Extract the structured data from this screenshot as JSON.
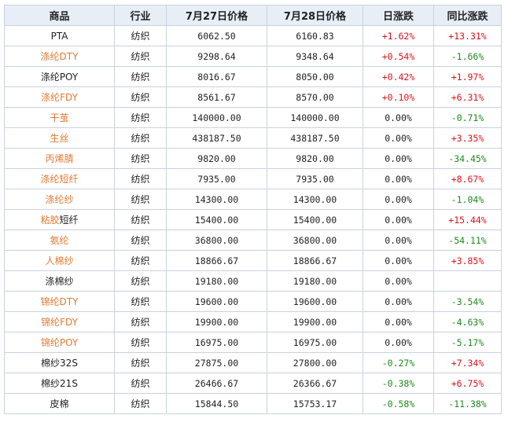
{
  "columns": [
    "商品",
    "行业",
    "7月27日价格",
    "7月28日价格",
    "日涨跌",
    "同比涨跌"
  ],
  "colors": {
    "link": "#e07a32",
    "up": "#d8141c",
    "down": "#1e8a1e",
    "header_bg": "#e8eef6"
  },
  "rows": [
    {
      "name_a": "PTA",
      "name_b": "",
      "name_style": "plain",
      "industry": "纺织",
      "p27": "6062.50",
      "p28": "6160.83",
      "daily": "+1.62%",
      "daily_dir": "up",
      "yoy": "+13.31%",
      "yoy_dir": "up"
    },
    {
      "name_a": "涤纶DTY",
      "name_b": "",
      "name_style": "link",
      "industry": "纺织",
      "p27": "9298.64",
      "p28": "9348.64",
      "daily": "+0.54%",
      "daily_dir": "up",
      "yoy": "-1.66%",
      "yoy_dir": "down"
    },
    {
      "name_a": "涤纶POY",
      "name_b": "",
      "name_style": "plain",
      "industry": "纺织",
      "p27": "8016.67",
      "p28": "8050.00",
      "daily": "+0.42%",
      "daily_dir": "up",
      "yoy": "+1.97%",
      "yoy_dir": "up"
    },
    {
      "name_a": "涤纶FDY",
      "name_b": "",
      "name_style": "link",
      "industry": "纺织",
      "p27": "8561.67",
      "p28": "8570.00",
      "daily": "+0.10%",
      "daily_dir": "up",
      "yoy": "+6.31%",
      "yoy_dir": "up"
    },
    {
      "name_a": "干茧",
      "name_b": "",
      "name_style": "link",
      "industry": "纺织",
      "p27": "140000.00",
      "p28": "140000.00",
      "daily": "0.00%",
      "daily_dir": "flat",
      "yoy": "-0.71%",
      "yoy_dir": "down"
    },
    {
      "name_a": "生丝",
      "name_b": "",
      "name_style": "link",
      "industry": "纺织",
      "p27": "438187.50",
      "p28": "438187.50",
      "daily": "0.00%",
      "daily_dir": "flat",
      "yoy": "+3.35%",
      "yoy_dir": "up"
    },
    {
      "name_a": "丙烯腈",
      "name_b": "",
      "name_style": "link",
      "industry": "纺织",
      "p27": "9820.00",
      "p28": "9820.00",
      "daily": "0.00%",
      "daily_dir": "flat",
      "yoy": "-34.45%",
      "yoy_dir": "down"
    },
    {
      "name_a": "涤纶短纤",
      "name_b": "",
      "name_style": "link",
      "industry": "纺织",
      "p27": "7935.00",
      "p28": "7935.00",
      "daily": "0.00%",
      "daily_dir": "flat",
      "yoy": "+8.67%",
      "yoy_dir": "up"
    },
    {
      "name_a": "涤纶纱",
      "name_b": "",
      "name_style": "link",
      "industry": "纺织",
      "p27": "14300.00",
      "p28": "14300.00",
      "daily": "0.00%",
      "daily_dir": "flat",
      "yoy": "-1.04%",
      "yoy_dir": "down"
    },
    {
      "name_a": "粘胶",
      "name_b": "短纤",
      "name_style": "split",
      "industry": "纺织",
      "p27": "15400.00",
      "p28": "15400.00",
      "daily": "0.00%",
      "daily_dir": "flat",
      "yoy": "+15.44%",
      "yoy_dir": "up"
    },
    {
      "name_a": "氨纶",
      "name_b": "",
      "name_style": "link",
      "industry": "纺织",
      "p27": "36800.00",
      "p28": "36800.00",
      "daily": "0.00%",
      "daily_dir": "flat",
      "yoy": "-54.11%",
      "yoy_dir": "down"
    },
    {
      "name_a": "人棉纱",
      "name_b": "",
      "name_style": "link",
      "industry": "纺织",
      "p27": "18866.67",
      "p28": "18866.67",
      "daily": "0.00%",
      "daily_dir": "flat",
      "yoy": "+3.85%",
      "yoy_dir": "up"
    },
    {
      "name_a": "涤棉纱",
      "name_b": "",
      "name_style": "plain",
      "industry": "纺织",
      "p27": "19180.00",
      "p28": "19180.00",
      "daily": "0.00%",
      "daily_dir": "flat",
      "yoy": "",
      "yoy_dir": "flat"
    },
    {
      "name_a": "锦纶DTY",
      "name_b": "",
      "name_style": "link",
      "industry": "纺织",
      "p27": "19600.00",
      "p28": "19600.00",
      "daily": "0.00%",
      "daily_dir": "flat",
      "yoy": "-3.54%",
      "yoy_dir": "down"
    },
    {
      "name_a": "锦纶FDY",
      "name_b": "",
      "name_style": "link",
      "industry": "纺织",
      "p27": "19900.00",
      "p28": "19900.00",
      "daily": "0.00%",
      "daily_dir": "flat",
      "yoy": "-4.63%",
      "yoy_dir": "down"
    },
    {
      "name_a": "锦纶POY",
      "name_b": "",
      "name_style": "link",
      "industry": "纺织",
      "p27": "16975.00",
      "p28": "16975.00",
      "daily": "0.00%",
      "daily_dir": "flat",
      "yoy": "-5.17%",
      "yoy_dir": "down"
    },
    {
      "name_a": "棉纱32S",
      "name_b": "",
      "name_style": "plain",
      "industry": "纺织",
      "p27": "27875.00",
      "p28": "27800.00",
      "daily": "-0.27%",
      "daily_dir": "down",
      "yoy": "+7.34%",
      "yoy_dir": "up"
    },
    {
      "name_a": "棉纱21S",
      "name_b": "",
      "name_style": "plain",
      "industry": "纺织",
      "p27": "26466.67",
      "p28": "26366.67",
      "daily": "-0.38%",
      "daily_dir": "down",
      "yoy": "+6.75%",
      "yoy_dir": "up"
    },
    {
      "name_a": "皮棉",
      "name_b": "",
      "name_style": "plain",
      "industry": "纺织",
      "p27": "15844.50",
      "p28": "15753.17",
      "daily": "-0.58%",
      "daily_dir": "down",
      "yoy": "-11.38%",
      "yoy_dir": "down"
    }
  ]
}
